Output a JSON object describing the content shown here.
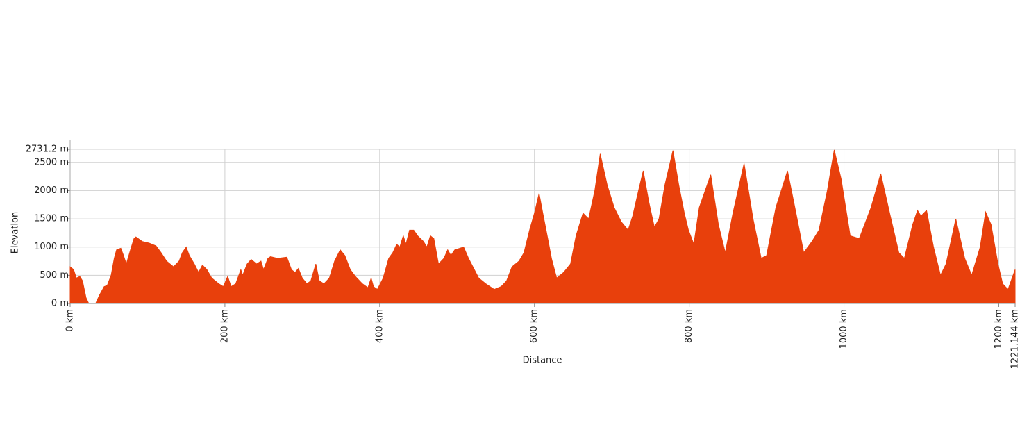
{
  "chart_data": {
    "type": "area",
    "x_label": "Distance",
    "y_label": "Elevation",
    "color": "#e8400c",
    "grid": true,
    "x": [
      0,
      4.5,
      8,
      12.5,
      16,
      20.6,
      24,
      33,
      38,
      44,
      48,
      53,
      57,
      60,
      65.5,
      69,
      72.6,
      78,
      82.5,
      85,
      93,
      102,
      111,
      117.5,
      124.7,
      133.6,
      140.8,
      145,
      150,
      154,
      160.5,
      166,
      171,
      176.7,
      183,
      192,
      198,
      203.6,
      208,
      214,
      220.6,
      223,
      228.7,
      234,
      241,
      246.6,
      250,
      255.6,
      259,
      268,
      280,
      286,
      290.6,
      295,
      300,
      306,
      311,
      317.5,
      322,
      328,
      335,
      341.7,
      349,
      355,
      362,
      368.6,
      377.6,
      384.8,
      389,
      392,
      397,
      404.5,
      411.7,
      417,
      422,
      426,
      430.5,
      434,
      438.6,
      444,
      449,
      456.5,
      461,
      465.5,
      470,
      476,
      483,
      487.9,
      492,
      497,
      508.5,
      514.8,
      528,
      537,
      548,
      557,
      564,
      571,
      580,
      586.5,
      593.7,
      600,
      606,
      610.8,
      617.9,
      622,
      628.7,
      637.7,
      646.6,
      653.8,
      662.8,
      670,
      678,
      685,
      694,
      703,
      712,
      721,
      727,
      734.5,
      740.6,
      747.8,
      755,
      761,
      768.6,
      779,
      786.5,
      793.7,
      799,
      806,
      813,
      827.8,
      837.7,
      846.6,
      856.5,
      870.9,
      882.5,
      893,
      900,
      912,
      927,
      938,
      948,
      958.7,
      967.7,
      978.5,
      987.4,
      996.4,
      1008,
      1019.7,
      1035,
      1047.5,
      1059,
      1070.9,
      1078,
      1088.8,
      1095,
      1099.5,
      1106.7,
      1115.7,
      1124.7,
      1131.9,
      1144.5,
      1156,
      1165,
      1176,
      1183,
      1190,
      1199,
      1205,
      1212,
      1221.144
    ],
    "values": [
      650,
      600,
      450,
      480,
      400,
      100,
      0,
      0,
      150,
      300,
      320,
      500,
      800,
      950,
      980,
      850,
      700,
      950,
      1150,
      1180,
      1100,
      1070,
      1020,
      900,
      750,
      650,
      750,
      900,
      1000,
      850,
      700,
      550,
      680,
      600,
      450,
      350,
      300,
      480,
      300,
      350,
      600,
      500,
      700,
      780,
      700,
      750,
      600,
      800,
      830,
      800,
      820,
      600,
      550,
      620,
      450,
      350,
      400,
      700,
      400,
      350,
      450,
      750,
      950,
      850,
      600,
      480,
      350,
      280,
      450,
      300,
      250,
      450,
      800,
      900,
      1050,
      1000,
      1200,
      1050,
      1300,
      1300,
      1200,
      1100,
      1000,
      1200,
      1150,
      700,
      800,
      950,
      850,
      950,
      1000,
      800,
      450,
      350,
      250,
      300,
      400,
      650,
      750,
      900,
      1300,
      1600,
      1950,
      1600,
      1100,
      800,
      450,
      550,
      700,
      1200,
      1600,
      1500,
      2000,
      2650,
      2100,
      1700,
      1450,
      1300,
      1550,
      2000,
      2350,
      1800,
      1350,
      1500,
      2100,
      2710,
      2100,
      1600,
      1300,
      1050,
      1700,
      2280,
      1400,
      900,
      1600,
      2480,
      1500,
      800,
      850,
      1700,
      2350,
      1600,
      900,
      1100,
      1300,
      2000,
      2720,
      2200,
      1200,
      1150,
      1700,
      2300,
      1600,
      900,
      800,
      1400,
      1650,
      1550,
      1650,
      1000,
      500,
      700,
      1500,
      800,
      500,
      1000,
      1620,
      1400,
      700,
      350,
      250,
      600
    ],
    "xlim": [
      0,
      1221.144
    ],
    "ylim": [
      0,
      2731.2
    ],
    "xticks": [
      {
        "value": 0,
        "label": "0 km"
      },
      {
        "value": 200,
        "label": "200 km"
      },
      {
        "value": 400,
        "label": "400 km"
      },
      {
        "value": 600,
        "label": "600 km"
      },
      {
        "value": 800,
        "label": "800 km"
      },
      {
        "value": 1000,
        "label": "1000 km"
      },
      {
        "value": 1200,
        "label": "1200 km"
      },
      {
        "value": 1221.144,
        "label": "1221.144 km"
      }
    ],
    "yticks": [
      {
        "value": 0,
        "label": "0 m"
      },
      {
        "value": 500,
        "label": "500 m"
      },
      {
        "value": 1000,
        "label": "1000 m"
      },
      {
        "value": 1500,
        "label": "1500 m"
      },
      {
        "value": 2000,
        "label": "2000 m"
      },
      {
        "value": 2500,
        "label": "2500 m"
      },
      {
        "value": 2731.2,
        "label": "2731.2 m"
      }
    ]
  }
}
